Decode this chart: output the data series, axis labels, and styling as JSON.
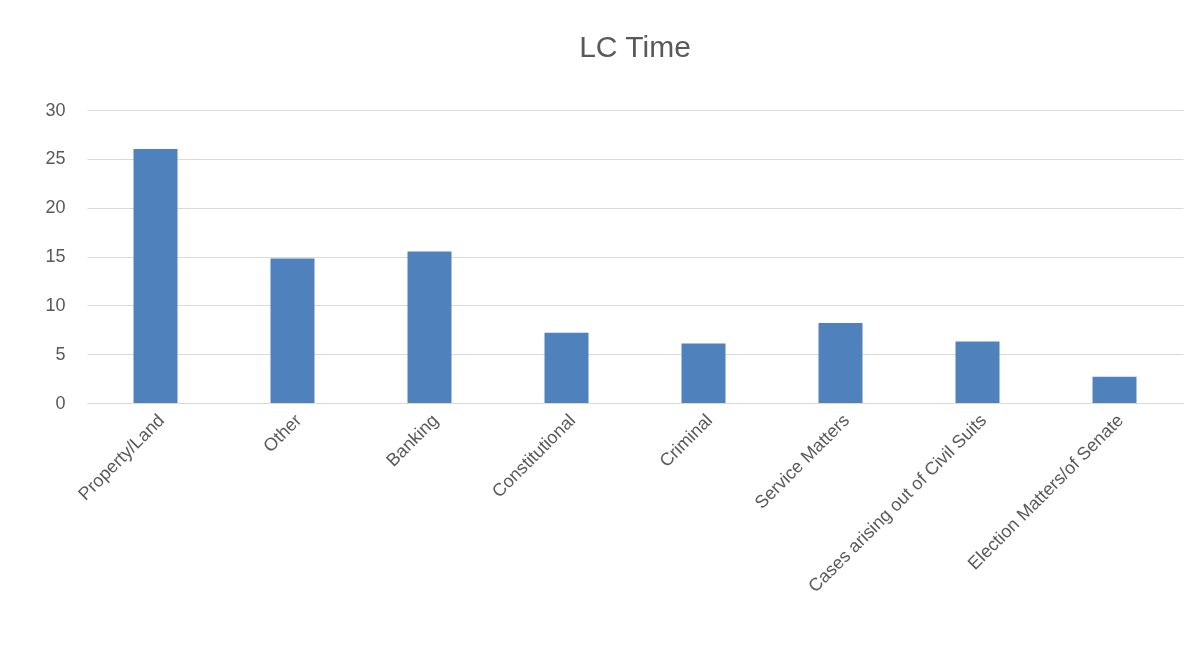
{
  "chart_data": {
    "type": "bar",
    "title": "LC Time",
    "categories": [
      "Property/Land",
      "Other",
      "Banking",
      "Constitutional",
      "Criminal",
      "Service Matters",
      "Cases arising out of Civil Suits",
      "Election Matters/of Senate"
    ],
    "values": [
      26.0,
      14.8,
      15.5,
      7.2,
      6.1,
      8.2,
      6.3,
      2.7
    ],
    "color": "#4f81bd",
    "ylim": [
      0,
      30
    ],
    "yticks": [
      0,
      5,
      10,
      15,
      20,
      25,
      30
    ],
    "grid": "y"
  }
}
